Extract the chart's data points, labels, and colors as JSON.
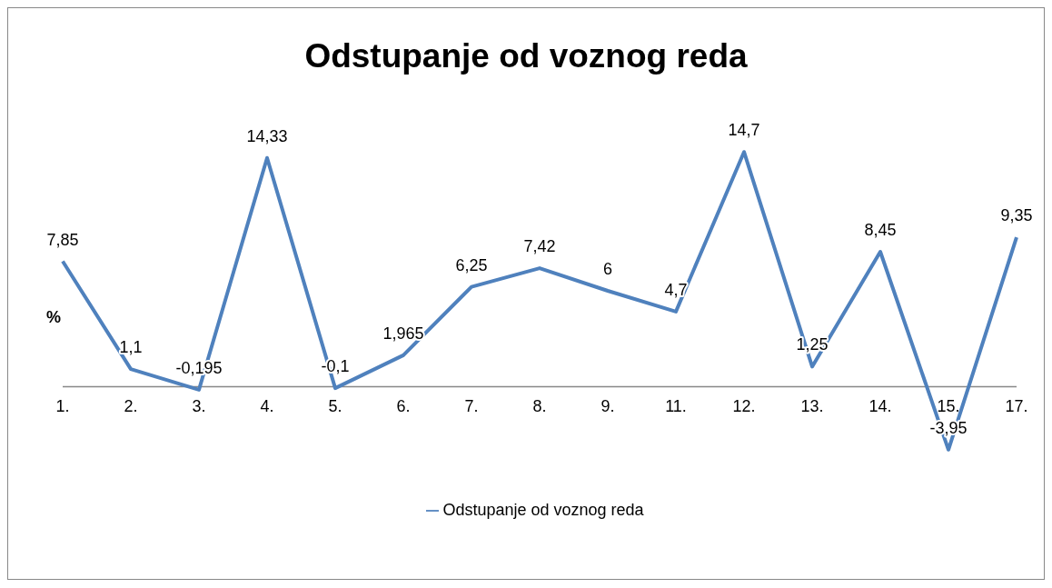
{
  "chart_data": {
    "type": "line",
    "title": "Odstupanje od voznog reda",
    "ylabel": "%",
    "categories": [
      "1.",
      "2.",
      "3.",
      "4.",
      "5.",
      "6.",
      "7.",
      "8.",
      "9.",
      "11.",
      "12.",
      "13.",
      "14.",
      "15.",
      "17."
    ],
    "series": [
      {
        "name": "Odstupanje od voznog reda",
        "color": "#4f81bd",
        "values": [
          7.85,
          1.1,
          -0.195,
          14.33,
          -0.1,
          1.965,
          6.25,
          7.42,
          6,
          4.7,
          14.7,
          1.25,
          8.45,
          -3.95,
          9.35
        ],
        "value_labels": [
          "7,85",
          "1,1",
          "-0,195",
          "14,33",
          "-0,1",
          "1,965",
          "6,25",
          "7,42",
          "6",
          "4,7",
          "14,7",
          "1,25",
          "8,45",
          "-3,95",
          "9,35"
        ]
      }
    ],
    "legend": "bottom",
    "marker": "none",
    "line_style": "solid"
  }
}
